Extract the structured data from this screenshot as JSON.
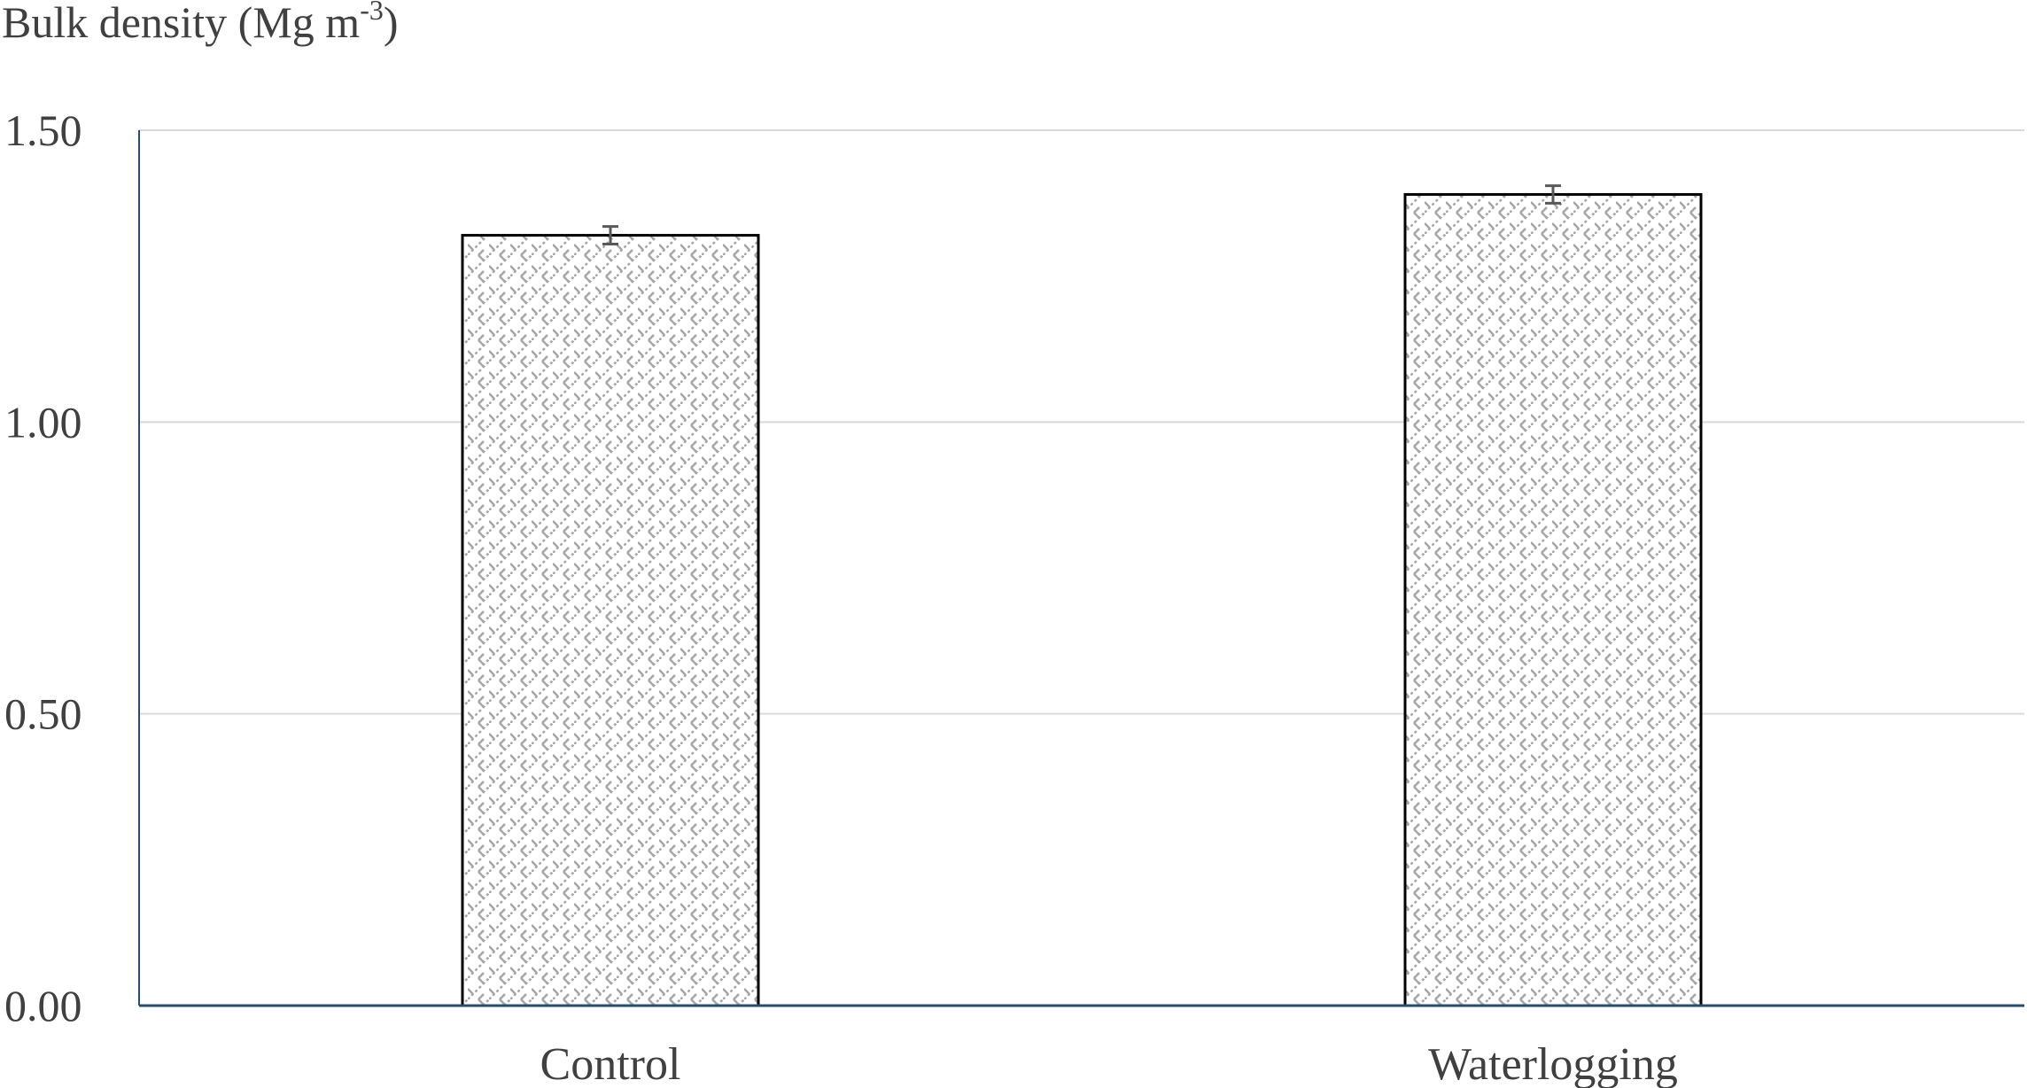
{
  "chart_data": {
    "type": "bar",
    "title": "",
    "ylabel": "Bulk density (Mg m",
    "ylabel_superscript": "-3",
    "ylabel_suffix": ")",
    "xlabel": "",
    "categories": [
      "Control",
      "Waterlogging"
    ],
    "values": [
      1.32,
      1.39
    ],
    "errors": [
      0.015,
      0.015
    ],
    "ylim": [
      0,
      1.5
    ],
    "yticks": [
      "0.00",
      "0.50",
      "1.00",
      "1.50"
    ],
    "grid": true,
    "legend": "none",
    "colors": {
      "bar_fill_pattern": "#a6a6a6",
      "bar_edge": "#000000",
      "axis": "#1f4e79",
      "grid": "#d9d9d9",
      "error_bar": "#595959"
    }
  }
}
